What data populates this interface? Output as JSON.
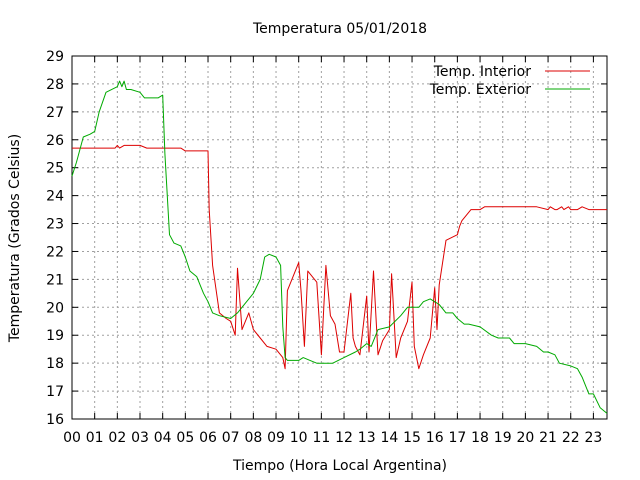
{
  "chart_data": {
    "type": "line",
    "title": "Temperatura 05/01/2018",
    "xlabel": "Tiempo (Hora Local Argentina)",
    "ylabel": "Temperatura (Grados Celsius)",
    "xlim": [
      0,
      23.6
    ],
    "ylim": [
      16,
      29
    ],
    "x_ticks": [
      "00",
      "01",
      "02",
      "03",
      "04",
      "05",
      "06",
      "07",
      "08",
      "09",
      "10",
      "11",
      "12",
      "13",
      "14",
      "15",
      "16",
      "17",
      "18",
      "19",
      "20",
      "21",
      "22",
      "23"
    ],
    "y_ticks": [
      16,
      17,
      18,
      19,
      20,
      21,
      22,
      23,
      24,
      25,
      26,
      27,
      28,
      29
    ],
    "grid": true,
    "legend_position": "top-right",
    "series": [
      {
        "name": "Temp. Interior",
        "color": "#dd0000",
        "x": [
          0,
          1,
          1.9,
          2.0,
          2.1,
          2.3,
          2.6,
          3.0,
          3.3,
          4.0,
          4.8,
          5.0,
          5.2,
          6.0,
          6.05,
          6.2,
          6.5,
          6.8,
          7.0,
          7.2,
          7.3,
          7.5,
          7.8,
          8.0,
          8.3,
          8.6,
          9.0,
          9.3,
          9.4,
          9.5,
          9.7,
          10.0,
          10.1,
          10.25,
          10.4,
          10.5,
          10.8,
          11.0,
          11.2,
          11.4,
          11.6,
          11.8,
          12.0,
          12.3,
          12.4,
          12.5,
          12.7,
          13.0,
          13.1,
          13.3,
          13.5,
          13.7,
          14.0,
          14.1,
          14.3,
          14.5,
          14.8,
          15.0,
          15.1,
          15.3,
          15.5,
          15.8,
          16.0,
          16.1,
          16.2,
          16.35,
          16.5,
          17.0,
          17.1,
          17.2,
          17.4,
          17.6,
          17.9,
          18.0,
          18.2,
          18.5,
          19.0,
          20.0,
          20.5,
          21.0,
          21.1,
          21.3,
          21.4,
          21.6,
          21.7,
          21.9,
          22.0,
          22.2,
          22.3,
          22.5,
          22.8,
          23.0,
          23.6
        ],
        "y": [
          25.7,
          25.7,
          25.7,
          25.8,
          25.7,
          25.8,
          25.8,
          25.8,
          25.7,
          25.7,
          25.7,
          25.6,
          25.6,
          25.6,
          23.5,
          21.5,
          19.8,
          19.6,
          19.5,
          19.0,
          21.4,
          19.2,
          19.8,
          19.2,
          18.9,
          18.6,
          18.5,
          18.2,
          17.8,
          20.6,
          21.0,
          21.6,
          20.6,
          18.6,
          21.3,
          21.2,
          20.9,
          18.3,
          21.5,
          19.7,
          19.4,
          18.4,
          18.4,
          20.5,
          18.9,
          18.6,
          18.3,
          20.4,
          18.4,
          21.3,
          18.3,
          18.8,
          19.2,
          21.2,
          18.2,
          18.9,
          19.5,
          20.9,
          18.6,
          17.8,
          18.3,
          18.9,
          20.7,
          19.2,
          20.8,
          21.6,
          22.4,
          22.6,
          22.9,
          23.1,
          23.3,
          23.5,
          23.5,
          23.5,
          23.6,
          23.6,
          23.6,
          23.6,
          23.6,
          23.5,
          23.6,
          23.5,
          23.5,
          23.6,
          23.5,
          23.6,
          23.5,
          23.5,
          23.5,
          23.6,
          23.5,
          23.5,
          23.5
        ],
        "legend_line_color": "#dd0000"
      },
      {
        "name": "Temp. Exterior",
        "color": "#00aa00",
        "x": [
          0,
          0.2,
          0.5,
          0.8,
          1.0,
          1.2,
          1.5,
          2.0,
          2.1,
          2.2,
          2.3,
          2.4,
          2.6,
          3.0,
          3.2,
          3.5,
          3.8,
          4.0,
          4.1,
          4.3,
          4.5,
          4.8,
          5.0,
          5.2,
          5.5,
          5.8,
          6.0,
          6.2,
          6.5,
          7.0,
          7.3,
          7.5,
          8.0,
          8.3,
          8.5,
          8.7,
          9.0,
          9.2,
          9.3,
          9.4,
          9.5,
          10.0,
          10.2,
          10.5,
          10.8,
          11.0,
          11.5,
          12.0,
          12.5,
          12.7,
          13.0,
          13.2,
          13.5,
          14.0,
          14.5,
          14.8,
          15.0,
          15.3,
          15.5,
          15.8,
          16.0,
          16.2,
          16.5,
          16.8,
          17.0,
          17.3,
          17.5,
          18.0,
          18.5,
          18.8,
          19.0,
          19.3,
          19.5,
          20.0,
          20.5,
          20.8,
          21.0,
          21.3,
          21.5,
          22.0,
          22.3,
          22.5,
          22.8,
          23.0,
          23.3,
          23.6
        ],
        "y": [
          24.7,
          25.2,
          26.1,
          26.2,
          26.3,
          27.0,
          27.7,
          27.9,
          28.1,
          27.9,
          28.1,
          27.8,
          27.8,
          27.7,
          27.5,
          27.5,
          27.5,
          27.6,
          25.5,
          22.6,
          22.3,
          22.2,
          21.8,
          21.3,
          21.1,
          20.5,
          20.2,
          19.8,
          19.7,
          19.6,
          19.8,
          20.0,
          20.5,
          21.0,
          21.8,
          21.9,
          21.8,
          21.5,
          19.3,
          18.2,
          18.1,
          18.1,
          18.2,
          18.1,
          18.0,
          18.0,
          18.0,
          18.2,
          18.4,
          18.5,
          18.7,
          18.6,
          19.2,
          19.3,
          19.7,
          20.0,
          20.0,
          20.0,
          20.2,
          20.3,
          20.2,
          20.1,
          19.8,
          19.8,
          19.6,
          19.4,
          19.4,
          19.3,
          19.0,
          18.9,
          18.9,
          18.9,
          18.7,
          18.7,
          18.6,
          18.4,
          18.4,
          18.3,
          18.0,
          17.9,
          17.8,
          17.5,
          16.9,
          16.9,
          16.4,
          16.2
        ]
      }
    ]
  }
}
